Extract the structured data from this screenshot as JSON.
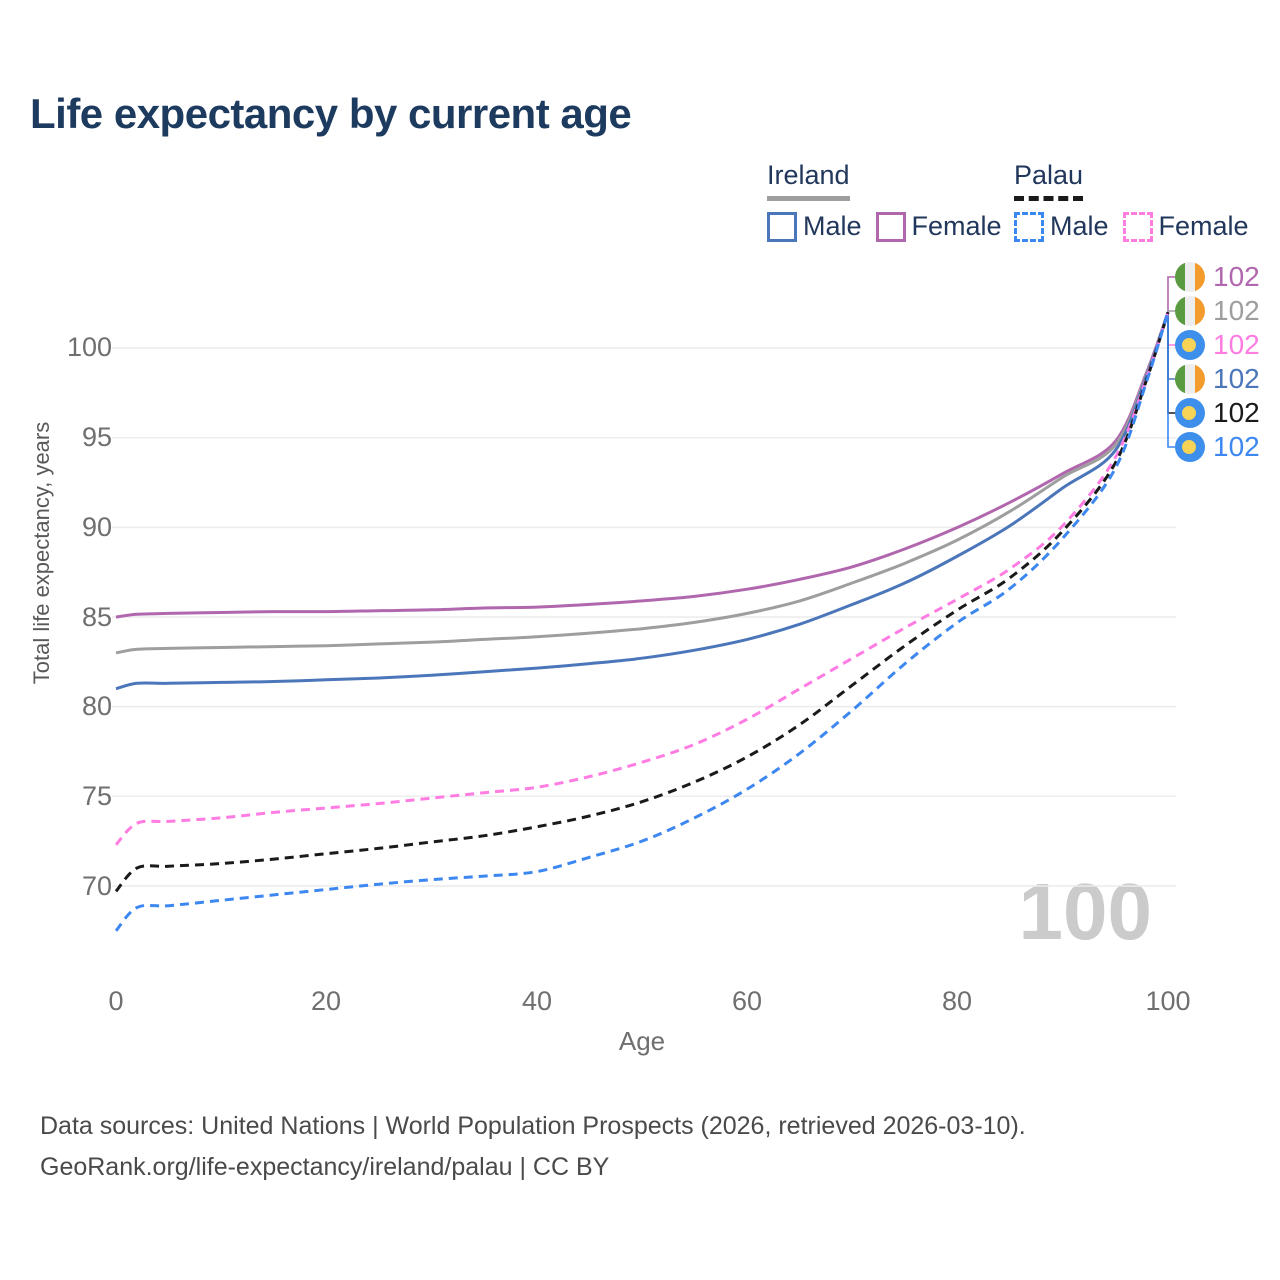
{
  "title": "Life expectancy by current age",
  "colors": {
    "title_text": "#1d3a5f",
    "grid": "#ececec",
    "tick_text": "#6f6f6f",
    "watermark": "#cbcbcb",
    "ireland_male": "#4b76ba",
    "ireland_female": "#b167ae",
    "ireland_total": "#9e9e9e",
    "palau_male": "#3d87f0",
    "palau_female": "#ff7ce3",
    "palau_total": "#1a1a1a"
  },
  "legend": {
    "groups": [
      {
        "label": "Ireland",
        "underline_style": "solid",
        "underline_color": "#9e9e9e",
        "items": [
          {
            "label": "Male",
            "color": "#4b76ba",
            "line_style": "solid"
          },
          {
            "label": "Female",
            "color": "#b167ae",
            "line_style": "solid"
          }
        ]
      },
      {
        "label": "Palau",
        "underline_style": "dashed",
        "underline_color": "#1a1a1a",
        "items": [
          {
            "label": "Male",
            "color": "#3d87f0",
            "line_style": "dashed"
          },
          {
            "label": "Female",
            "color": "#ff7ce3",
            "line_style": "dashed"
          }
        ]
      }
    ]
  },
  "axes": {
    "y": {
      "title": "Total life expectancy, years",
      "ticks": [
        "100",
        "95",
        "90",
        "85",
        "80",
        "75",
        "70"
      ]
    },
    "x": {
      "title": "Age",
      "ticks": [
        "0",
        "20",
        "40",
        "60",
        "80",
        "100"
      ]
    }
  },
  "watermark_age": "100",
  "end_labels": [
    {
      "series": "Ireland Female",
      "flag": "ireland-flag-icon",
      "flag_class": "flag-ireland",
      "value": "102",
      "color": "#b167ae"
    },
    {
      "series": "Ireland Both sexes",
      "flag": "ireland-flag-icon",
      "flag_class": "flag-ireland",
      "value": "102",
      "color": "#9e9e9e"
    },
    {
      "series": "Palau Female",
      "flag": "palau-flag-icon",
      "flag_class": "flag-palau",
      "value": "102",
      "color": "#ff7ce3"
    },
    {
      "series": "Ireland Male",
      "flag": "ireland-flag-icon",
      "flag_class": "flag-ireland",
      "value": "102",
      "color": "#4b76ba"
    },
    {
      "series": "Palau Both sexes",
      "flag": "palau-flag-icon",
      "flag_class": "flag-palau",
      "value": "102",
      "color": "#1a1a1a"
    },
    {
      "series": "Palau Male",
      "flag": "palau-flag-icon",
      "flag_class": "flag-palau",
      "value": "102",
      "color": "#3d87f0"
    }
  ],
  "footer": {
    "line1": "Data sources: United Nations | World Population Prospects (2026, retrieved 2026-03-10).",
    "line2": "GeoRank.org/life-expectancy/ireland/palau | CC BY"
  },
  "chart_data": {
    "type": "line",
    "title": "Life expectancy by current age",
    "xlabel": "Age",
    "ylabel": "Total life expectancy, years",
    "x_ticks": [
      0,
      20,
      40,
      60,
      80,
      100
    ],
    "y_ticks": [
      70,
      75,
      80,
      85,
      90,
      95,
      100
    ],
    "xlim": [
      0,
      100
    ],
    "ylim": [
      66.5,
      103.5
    ],
    "grid": "horizontal-only",
    "legend_position": "top-right",
    "ages": [
      0,
      2,
      5,
      10,
      15,
      20,
      25,
      30,
      35,
      40,
      45,
      50,
      55,
      60,
      65,
      70,
      75,
      80,
      85,
      90,
      95,
      98,
      100
    ],
    "series": [
      {
        "name": "Ireland Female",
        "country": "Ireland",
        "sex": "Female",
        "color": "#b167ae",
        "line_style": "solid",
        "end_value_label": "102",
        "values": [
          85.0,
          85.15,
          85.2,
          85.25,
          85.3,
          85.3,
          85.35,
          85.4,
          85.5,
          85.55,
          85.7,
          85.9,
          86.15,
          86.55,
          87.1,
          87.8,
          88.8,
          90.0,
          91.4,
          93.0,
          94.8,
          98.7,
          102
        ]
      },
      {
        "name": "Ireland Both sexes",
        "country": "Ireland",
        "sex": "Both",
        "color": "#9e9e9e",
        "line_style": "solid",
        "end_value_label": "102",
        "values": [
          83.0,
          83.2,
          83.25,
          83.3,
          83.35,
          83.4,
          83.5,
          83.6,
          83.75,
          83.9,
          84.1,
          84.35,
          84.7,
          85.2,
          85.9,
          86.9,
          88.0,
          89.3,
          90.9,
          92.8,
          94.6,
          98.6,
          102
        ]
      },
      {
        "name": "Ireland Male",
        "country": "Ireland",
        "sex": "Male",
        "color": "#4b76ba",
        "line_style": "solid",
        "end_value_label": "102",
        "values": [
          81.0,
          81.3,
          81.3,
          81.35,
          81.4,
          81.5,
          81.6,
          81.75,
          81.95,
          82.15,
          82.4,
          82.7,
          83.15,
          83.75,
          84.6,
          85.7,
          86.9,
          88.4,
          90.1,
          92.2,
          94.3,
          98.5,
          102
        ]
      },
      {
        "name": "Palau Female",
        "country": "Palau",
        "sex": "Female",
        "color": "#ff7ce3",
        "line_style": "dashed",
        "end_value_label": "102",
        "values": [
          72.3,
          73.5,
          73.6,
          73.8,
          74.1,
          74.35,
          74.6,
          74.9,
          75.2,
          75.5,
          76.1,
          76.9,
          77.9,
          79.3,
          81.0,
          82.7,
          84.4,
          86.0,
          87.7,
          90.1,
          93.9,
          98.4,
          102
        ]
      },
      {
        "name": "Palau Both sexes",
        "country": "Palau",
        "sex": "Both",
        "color": "#1a1a1a",
        "line_style": "dashed",
        "end_value_label": "102",
        "values": [
          69.7,
          71.0,
          71.1,
          71.25,
          71.5,
          71.8,
          72.1,
          72.45,
          72.8,
          73.3,
          73.9,
          74.7,
          75.8,
          77.2,
          79.0,
          81.2,
          83.4,
          85.4,
          87.2,
          89.8,
          93.6,
          98.3,
          102
        ]
      },
      {
        "name": "Palau Male",
        "country": "Palau",
        "sex": "Male",
        "color": "#3d87f0",
        "line_style": "dashed",
        "end_value_label": "102",
        "values": [
          67.5,
          68.8,
          68.9,
          69.2,
          69.5,
          69.8,
          70.1,
          70.35,
          70.55,
          70.8,
          71.6,
          72.5,
          73.8,
          75.4,
          77.4,
          79.8,
          82.4,
          84.7,
          86.6,
          89.4,
          93.3,
          98.2,
          102
        ]
      }
    ]
  }
}
